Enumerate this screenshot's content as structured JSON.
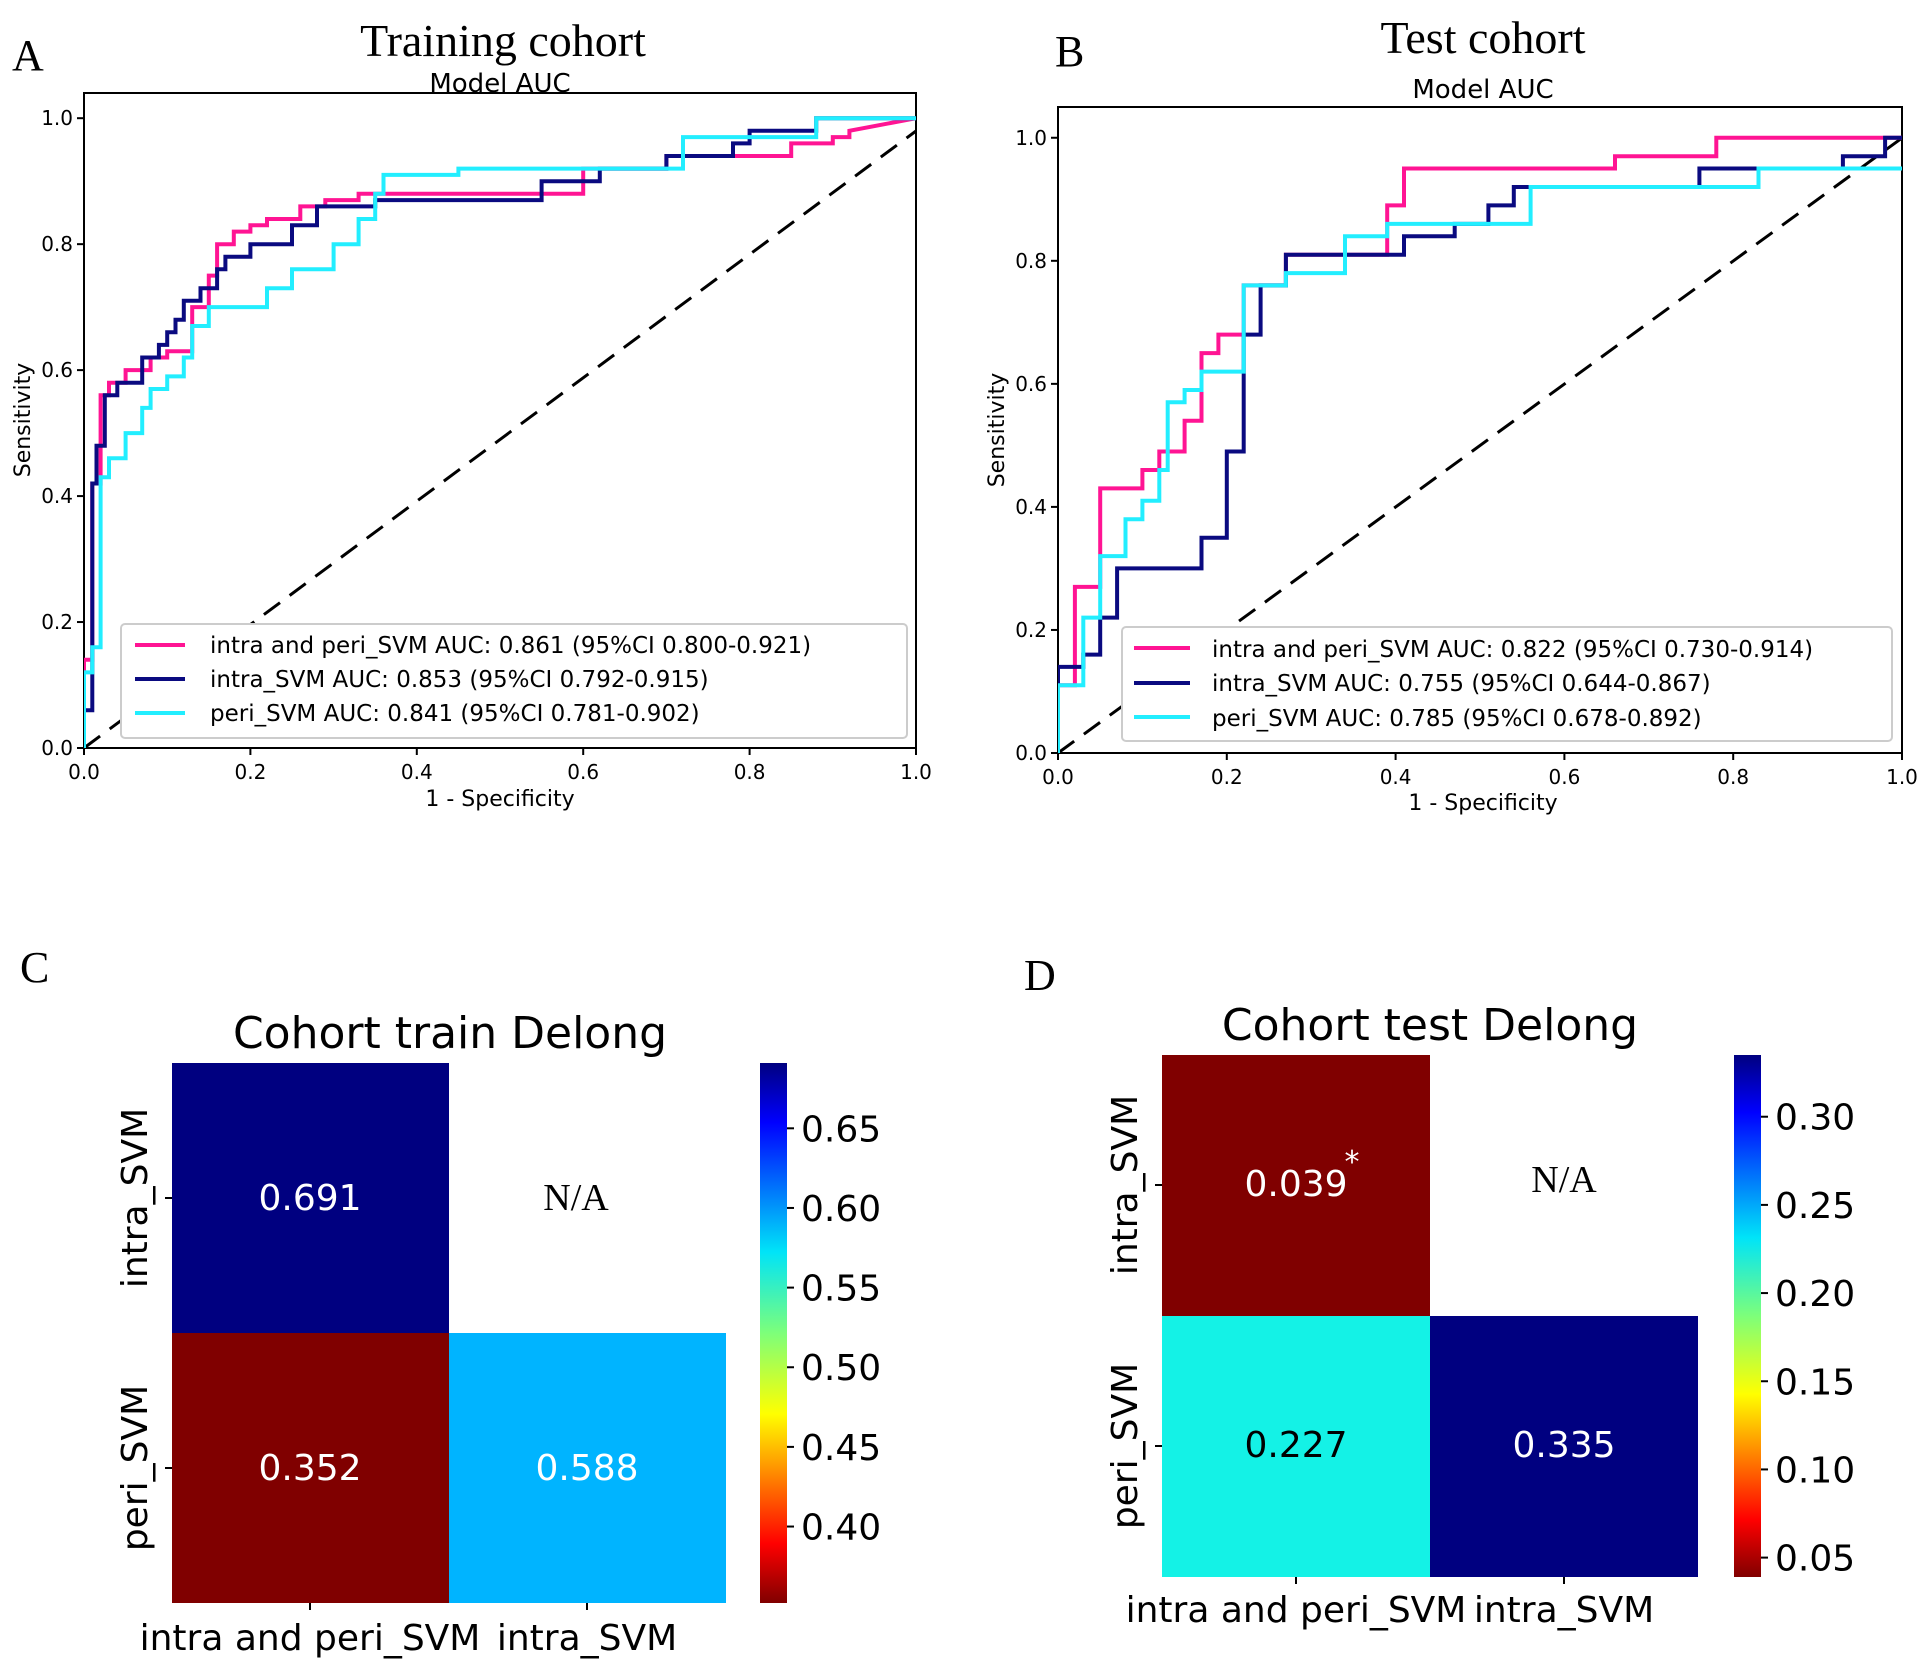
{
  "chart_data": [
    {
      "panel": "A",
      "type": "line",
      "title": "Training cohort",
      "subtitle": "Model AUC",
      "xlabel": "1 - Specificity",
      "ylabel": "Sensitivity",
      "xlim": [
        0,
        1
      ],
      "ylim": [
        0,
        1.04
      ],
      "xticks": [
        "0.0",
        "0.2",
        "0.4",
        "0.6",
        "0.8",
        "1.0"
      ],
      "yticks": [
        "0.0",
        "0.2",
        "0.4",
        "0.6",
        "0.8",
        "1.0"
      ],
      "legend_position": "bottom-right",
      "series": [
        {
          "name": "intra and peri_SVM",
          "legend": "intra and peri_SVM AUC: 0.861 (95%CI 0.800-0.921)",
          "color": "#ff1493",
          "x": [
            0,
            0,
            0.01,
            0.01,
            0.02,
            0.02,
            0.03,
            0.03,
            0.05,
            0.05,
            0.08,
            0.08,
            0.1,
            0.1,
            0.13,
            0.13,
            0.15,
            0.15,
            0.16,
            0.16,
            0.18,
            0.18,
            0.2,
            0.2,
            0.22,
            0.22,
            0.26,
            0.26,
            0.29,
            0.29,
            0.33,
            0.33,
            0.6,
            0.6,
            0.7,
            0.7,
            0.85,
            0.85,
            0.9,
            0.9,
            0.92,
            0.92,
            1.0
          ],
          "y": [
            0,
            0.14,
            0.14,
            0.42,
            0.42,
            0.56,
            0.56,
            0.58,
            0.58,
            0.6,
            0.6,
            0.62,
            0.62,
            0.63,
            0.63,
            0.7,
            0.7,
            0.75,
            0.75,
            0.8,
            0.8,
            0.82,
            0.82,
            0.83,
            0.83,
            0.84,
            0.84,
            0.86,
            0.86,
            0.87,
            0.87,
            0.88,
            0.88,
            0.92,
            0.92,
            0.94,
            0.94,
            0.96,
            0.96,
            0.97,
            0.97,
            0.98,
            1.0
          ]
        },
        {
          "name": "intra_SVM",
          "legend": "intra_SVM AUC: 0.853 (95%CI 0.792-0.915)",
          "color": "#0a0a80",
          "x": [
            0,
            0,
            0.01,
            0.01,
            0.015,
            0.015,
            0.025,
            0.025,
            0.04,
            0.04,
            0.07,
            0.07,
            0.09,
            0.09,
            0.1,
            0.1,
            0.11,
            0.11,
            0.12,
            0.12,
            0.14,
            0.14,
            0.16,
            0.16,
            0.17,
            0.17,
            0.2,
            0.2,
            0.25,
            0.25,
            0.28,
            0.28,
            0.35,
            0.35,
            0.55,
            0.55,
            0.62,
            0.62,
            0.7,
            0.7,
            0.78,
            0.78,
            0.8,
            0.8,
            0.88,
            0.88,
            1.0
          ],
          "y": [
            0,
            0.06,
            0.06,
            0.42,
            0.42,
            0.48,
            0.48,
            0.56,
            0.56,
            0.58,
            0.58,
            0.62,
            0.62,
            0.64,
            0.64,
            0.66,
            0.66,
            0.68,
            0.68,
            0.71,
            0.71,
            0.73,
            0.73,
            0.76,
            0.76,
            0.78,
            0.78,
            0.8,
            0.8,
            0.83,
            0.83,
            0.86,
            0.86,
            0.87,
            0.87,
            0.9,
            0.9,
            0.92,
            0.92,
            0.94,
            0.94,
            0.96,
            0.96,
            0.98,
            0.98,
            1.0,
            1.0
          ]
        },
        {
          "name": "peri_SVM",
          "legend": "peri_SVM AUC: 0.841 (95%CI 0.781-0.902)",
          "color": "#22eeff",
          "x": [
            0,
            0,
            0.01,
            0.01,
            0.02,
            0.02,
            0.03,
            0.03,
            0.05,
            0.05,
            0.07,
            0.07,
            0.08,
            0.08,
            0.1,
            0.1,
            0.12,
            0.12,
            0.13,
            0.13,
            0.15,
            0.15,
            0.22,
            0.22,
            0.25,
            0.25,
            0.3,
            0.3,
            0.33,
            0.33,
            0.35,
            0.35,
            0.36,
            0.36,
            0.45,
            0.45,
            0.72,
            0.72,
            0.88,
            0.88,
            1.0
          ],
          "y": [
            0,
            0.12,
            0.12,
            0.16,
            0.16,
            0.43,
            0.43,
            0.46,
            0.46,
            0.5,
            0.5,
            0.54,
            0.54,
            0.57,
            0.57,
            0.59,
            0.59,
            0.62,
            0.62,
            0.67,
            0.67,
            0.7,
            0.7,
            0.73,
            0.73,
            0.76,
            0.76,
            0.8,
            0.8,
            0.84,
            0.84,
            0.88,
            0.88,
            0.91,
            0.91,
            0.92,
            0.92,
            0.97,
            0.97,
            1.0,
            1.0
          ]
        }
      ]
    },
    {
      "panel": "B",
      "type": "line",
      "title": "Test cohort",
      "subtitle": "Model AUC",
      "xlabel": "1 - Specificity",
      "ylabel": "Sensitivity",
      "xlim": [
        0,
        1
      ],
      "ylim": [
        0,
        1.05
      ],
      "xticks": [
        "0.0",
        "0.2",
        "0.4",
        "0.6",
        "0.8",
        "1.0"
      ],
      "yticks": [
        "0.0",
        "0.2",
        "0.4",
        "0.6",
        "0.8",
        "1.0"
      ],
      "legend_position": "bottom-right",
      "series": [
        {
          "name": "intra and peri_SVM",
          "legend": "intra and peri_SVM AUC: 0.822 (95%CI 0.730-0.914)",
          "color": "#ff1493",
          "x": [
            0,
            0,
            0.02,
            0.02,
            0.05,
            0.05,
            0.1,
            0.1,
            0.12,
            0.12,
            0.15,
            0.15,
            0.17,
            0.17,
            0.19,
            0.19,
            0.22,
            0.22,
            0.27,
            0.27,
            0.39,
            0.39,
            0.41,
            0.41,
            0.66,
            0.66,
            0.78,
            0.78,
            1.0
          ],
          "y": [
            0,
            0.11,
            0.11,
            0.27,
            0.27,
            0.43,
            0.43,
            0.46,
            0.46,
            0.49,
            0.49,
            0.54,
            0.54,
            0.65,
            0.65,
            0.68,
            0.68,
            0.76,
            0.76,
            0.81,
            0.81,
            0.89,
            0.89,
            0.95,
            0.95,
            0.97,
            0.97,
            1.0,
            1.0
          ]
        },
        {
          "name": "intra_SVM",
          "legend": "intra_SVM AUC: 0.755 (95%CI 0.644-0.867)",
          "color": "#0a0a80",
          "x": [
            0,
            0,
            0.03,
            0.03,
            0.05,
            0.05,
            0.07,
            0.07,
            0.17,
            0.17,
            0.2,
            0.2,
            0.22,
            0.22,
            0.24,
            0.24,
            0.27,
            0.27,
            0.41,
            0.41,
            0.47,
            0.47,
            0.51,
            0.51,
            0.54,
            0.54,
            0.76,
            0.76,
            0.93,
            0.93,
            0.98,
            0.98,
            1.0
          ],
          "y": [
            0,
            0.14,
            0.14,
            0.16,
            0.16,
            0.22,
            0.22,
            0.3,
            0.3,
            0.35,
            0.35,
            0.49,
            0.49,
            0.68,
            0.68,
            0.76,
            0.76,
            0.81,
            0.81,
            0.84,
            0.84,
            0.86,
            0.86,
            0.89,
            0.89,
            0.92,
            0.92,
            0.95,
            0.95,
            0.97,
            0.97,
            1.0,
            1.0
          ]
        },
        {
          "name": "peri_SVM",
          "legend": "peri_SVM AUC: 0.785 (95%CI 0.678-0.892)",
          "color": "#22eeff",
          "x": [
            0,
            0,
            0.03,
            0.03,
            0.05,
            0.05,
            0.08,
            0.08,
            0.1,
            0.1,
            0.12,
            0.12,
            0.13,
            0.13,
            0.15,
            0.15,
            0.17,
            0.17,
            0.22,
            0.22,
            0.27,
            0.27,
            0.34,
            0.34,
            0.39,
            0.39,
            0.56,
            0.56,
            0.83,
            0.83,
            1.0
          ],
          "y": [
            0,
            0.11,
            0.11,
            0.22,
            0.22,
            0.32,
            0.32,
            0.38,
            0.38,
            0.41,
            0.41,
            0.46,
            0.46,
            0.57,
            0.57,
            0.59,
            0.59,
            0.62,
            0.62,
            0.76,
            0.76,
            0.78,
            0.78,
            0.84,
            0.84,
            0.86,
            0.86,
            0.92,
            0.92,
            0.95,
            0.95
          ]
        }
      ]
    },
    {
      "panel": "C",
      "type": "heatmap",
      "title": "Cohort train Delong",
      "x_categories": [
        "intra and peri_SVM",
        "intra_SVM"
      ],
      "y_categories": [
        "intra_SVM",
        "peri_SVM"
      ],
      "cells": [
        [
          {
            "value": "0.691",
            "color": "#000080"
          },
          {
            "value": "N/A",
            "color": null
          }
        ],
        [
          {
            "value": "0.352",
            "color": "#800000"
          },
          {
            "value": "0.588",
            "color": "#00b4ff"
          }
        ]
      ],
      "colorbar": {
        "range": [
          0.352,
          0.691
        ],
        "ticks": [
          "0.40",
          "0.45",
          "0.50",
          "0.55",
          "0.60",
          "0.65"
        ],
        "tick_values": [
          0.4,
          0.45,
          0.5,
          0.55,
          0.6,
          0.65
        ]
      }
    },
    {
      "panel": "D",
      "type": "heatmap",
      "title": "Cohort test Delong",
      "x_categories": [
        "intra and peri_SVM",
        "intra_SVM"
      ],
      "y_categories": [
        "intra_SVM",
        "peri_SVM"
      ],
      "cells": [
        [
          {
            "value": "0.039",
            "mark": "*",
            "color": "#800000"
          },
          {
            "value": "N/A",
            "color": null
          }
        ],
        [
          {
            "value": "0.227",
            "color": "#14f2e6"
          },
          {
            "value": "0.335",
            "color": "#000080"
          }
        ]
      ],
      "colorbar": {
        "range": [
          0.039,
          0.335
        ],
        "ticks": [
          "0.05",
          "0.10",
          "0.15",
          "0.20",
          "0.25",
          "0.30"
        ],
        "tick_values": [
          0.05,
          0.1,
          0.15,
          0.2,
          0.25,
          0.3
        ]
      }
    }
  ]
}
